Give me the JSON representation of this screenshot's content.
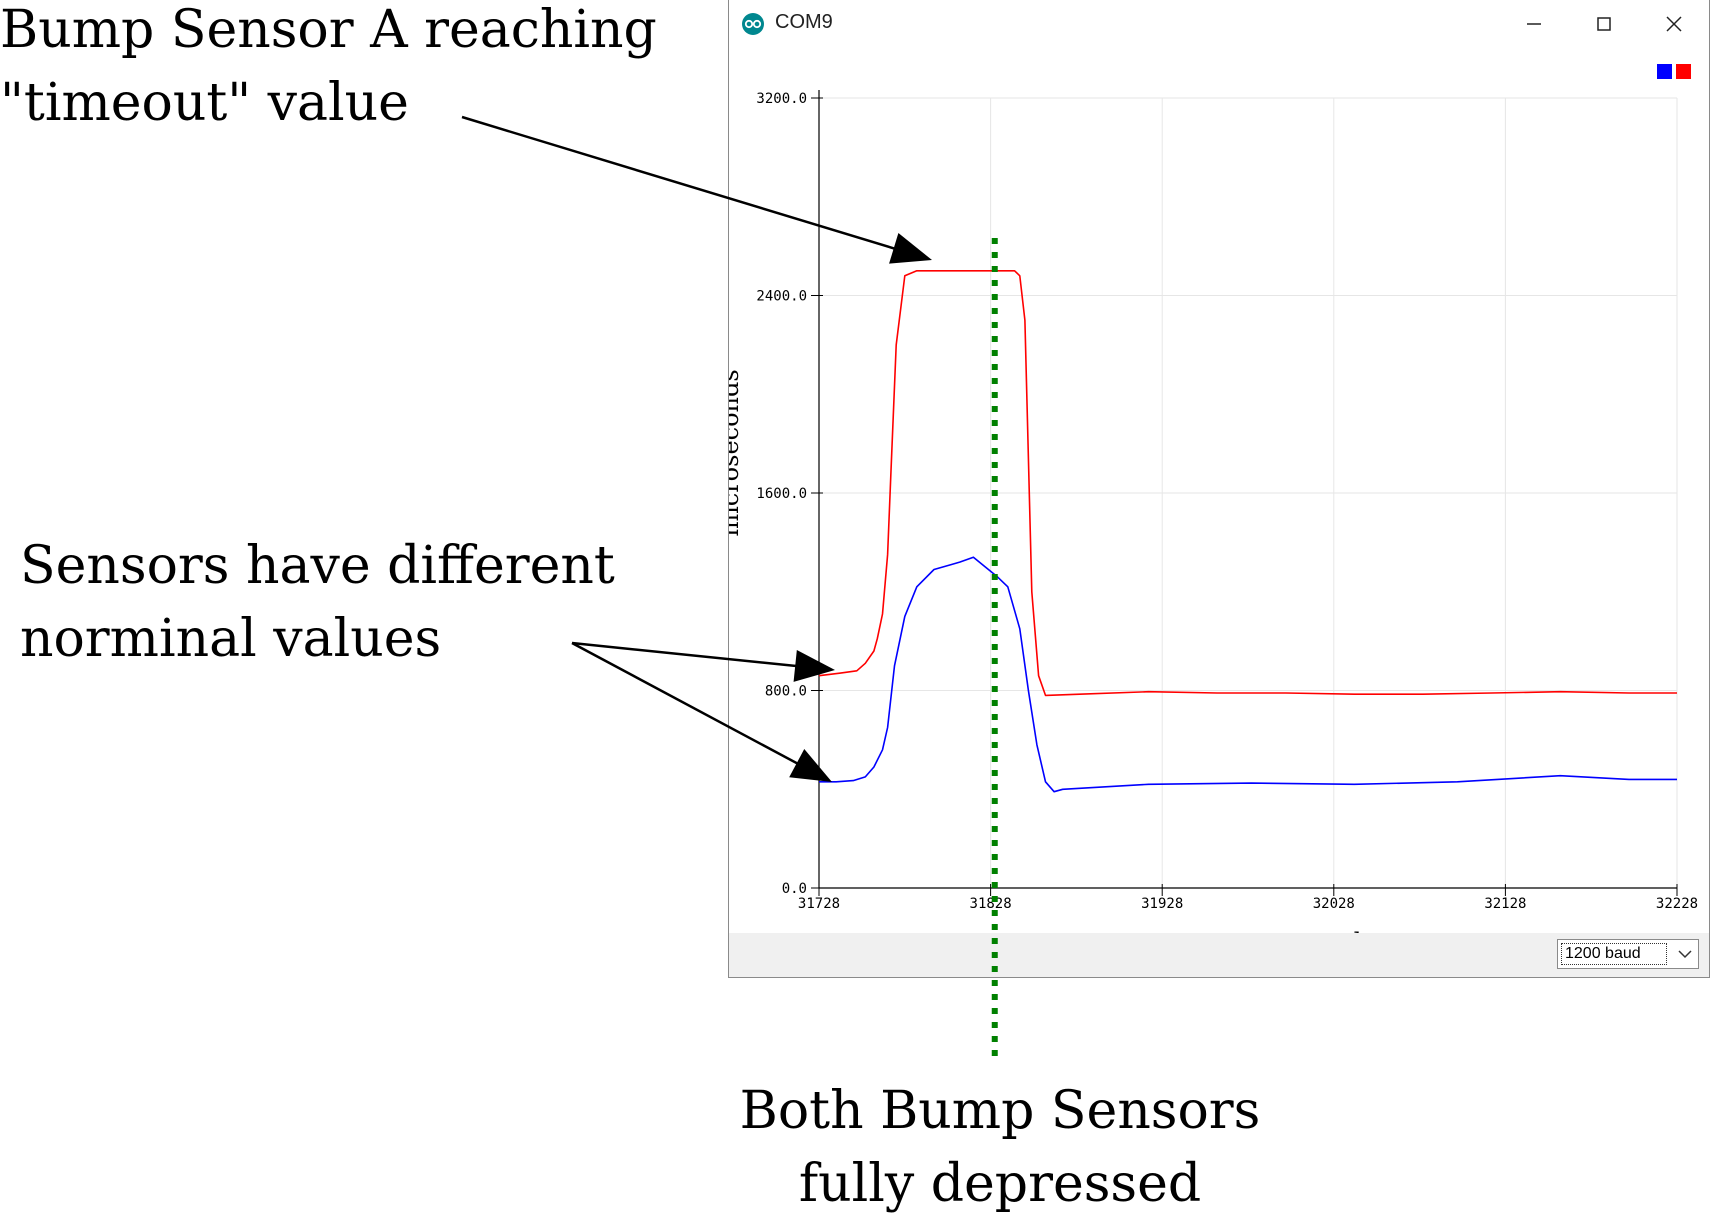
{
  "window": {
    "title": "COM9",
    "app_icon": "arduino-infinity-icon",
    "controls": [
      "minimize-icon",
      "maximize-icon",
      "close-icon"
    ]
  },
  "annotations": {
    "timeout": [
      "Bump Sensor A reaching",
      "\"timeout\" value"
    ],
    "nominal": [
      "Sensors have different",
      "norminal values"
    ],
    "depressed": [
      "Both Bump Sensors",
      "fully depressed"
    ]
  },
  "legend": [
    "#0000ff",
    "#ff0000"
  ],
  "baud": {
    "value": "1200 baud",
    "icon": "chevron-down-icon"
  },
  "colors": {
    "sensor_blue": "#0000ff",
    "sensor_red": "#ff0000",
    "marker": "#008000"
  },
  "chart_data": {
    "type": "line",
    "xlabel": "samples",
    "ylabel": "microseconds",
    "x_ticks": [
      "31728",
      "31828",
      "31928",
      "32028",
      "32128",
      "32228"
    ],
    "y_ticks": [
      "0.0",
      "800.0",
      "1600.0",
      "2400.0",
      "3200.0"
    ],
    "xlim": [
      31728,
      32228
    ],
    "ylim": [
      0,
      3200
    ],
    "grid": true,
    "series": [
      {
        "color": "#ff0000",
        "x": [
          31728,
          31740,
          31750,
          31755,
          31760,
          31762,
          31765,
          31768,
          31770,
          31773,
          31778,
          31785,
          31790,
          31815,
          31820,
          31823,
          31830,
          31838,
          31842,
          31845,
          31848,
          31852,
          31856,
          31860,
          31880,
          31920,
          31960,
          32000,
          32040,
          32080,
          32120,
          32160,
          32200,
          32228
        ],
        "y": [
          860,
          870,
          880,
          910,
          960,
          1010,
          1110,
          1350,
          1700,
          2200,
          2480,
          2500,
          2500,
          2500,
          2500,
          2500,
          2500,
          2500,
          2500,
          2480,
          2300,
          1200,
          860,
          780,
          785,
          795,
          790,
          790,
          785,
          785,
          790,
          795,
          790,
          790
        ]
      },
      {
        "color": "#0000ff",
        "x": [
          31728,
          31738,
          31748,
          31755,
          31760,
          31765,
          31768,
          31772,
          31778,
          31785,
          31795,
          31805,
          31810,
          31818,
          31825,
          31832,
          31838,
          31845,
          31850,
          31855,
          31860,
          31865,
          31870,
          31920,
          31980,
          32040,
          32100,
          32160,
          32200,
          32228
        ],
        "y": [
          430,
          430,
          435,
          450,
          490,
          560,
          650,
          900,
          1100,
          1220,
          1290,
          1310,
          1320,
          1340,
          1300,
          1260,
          1220,
          1050,
          800,
          580,
          430,
          390,
          400,
          420,
          425,
          420,
          430,
          455,
          440,
          440
        ]
      }
    ],
    "marker_x": 31831
  }
}
